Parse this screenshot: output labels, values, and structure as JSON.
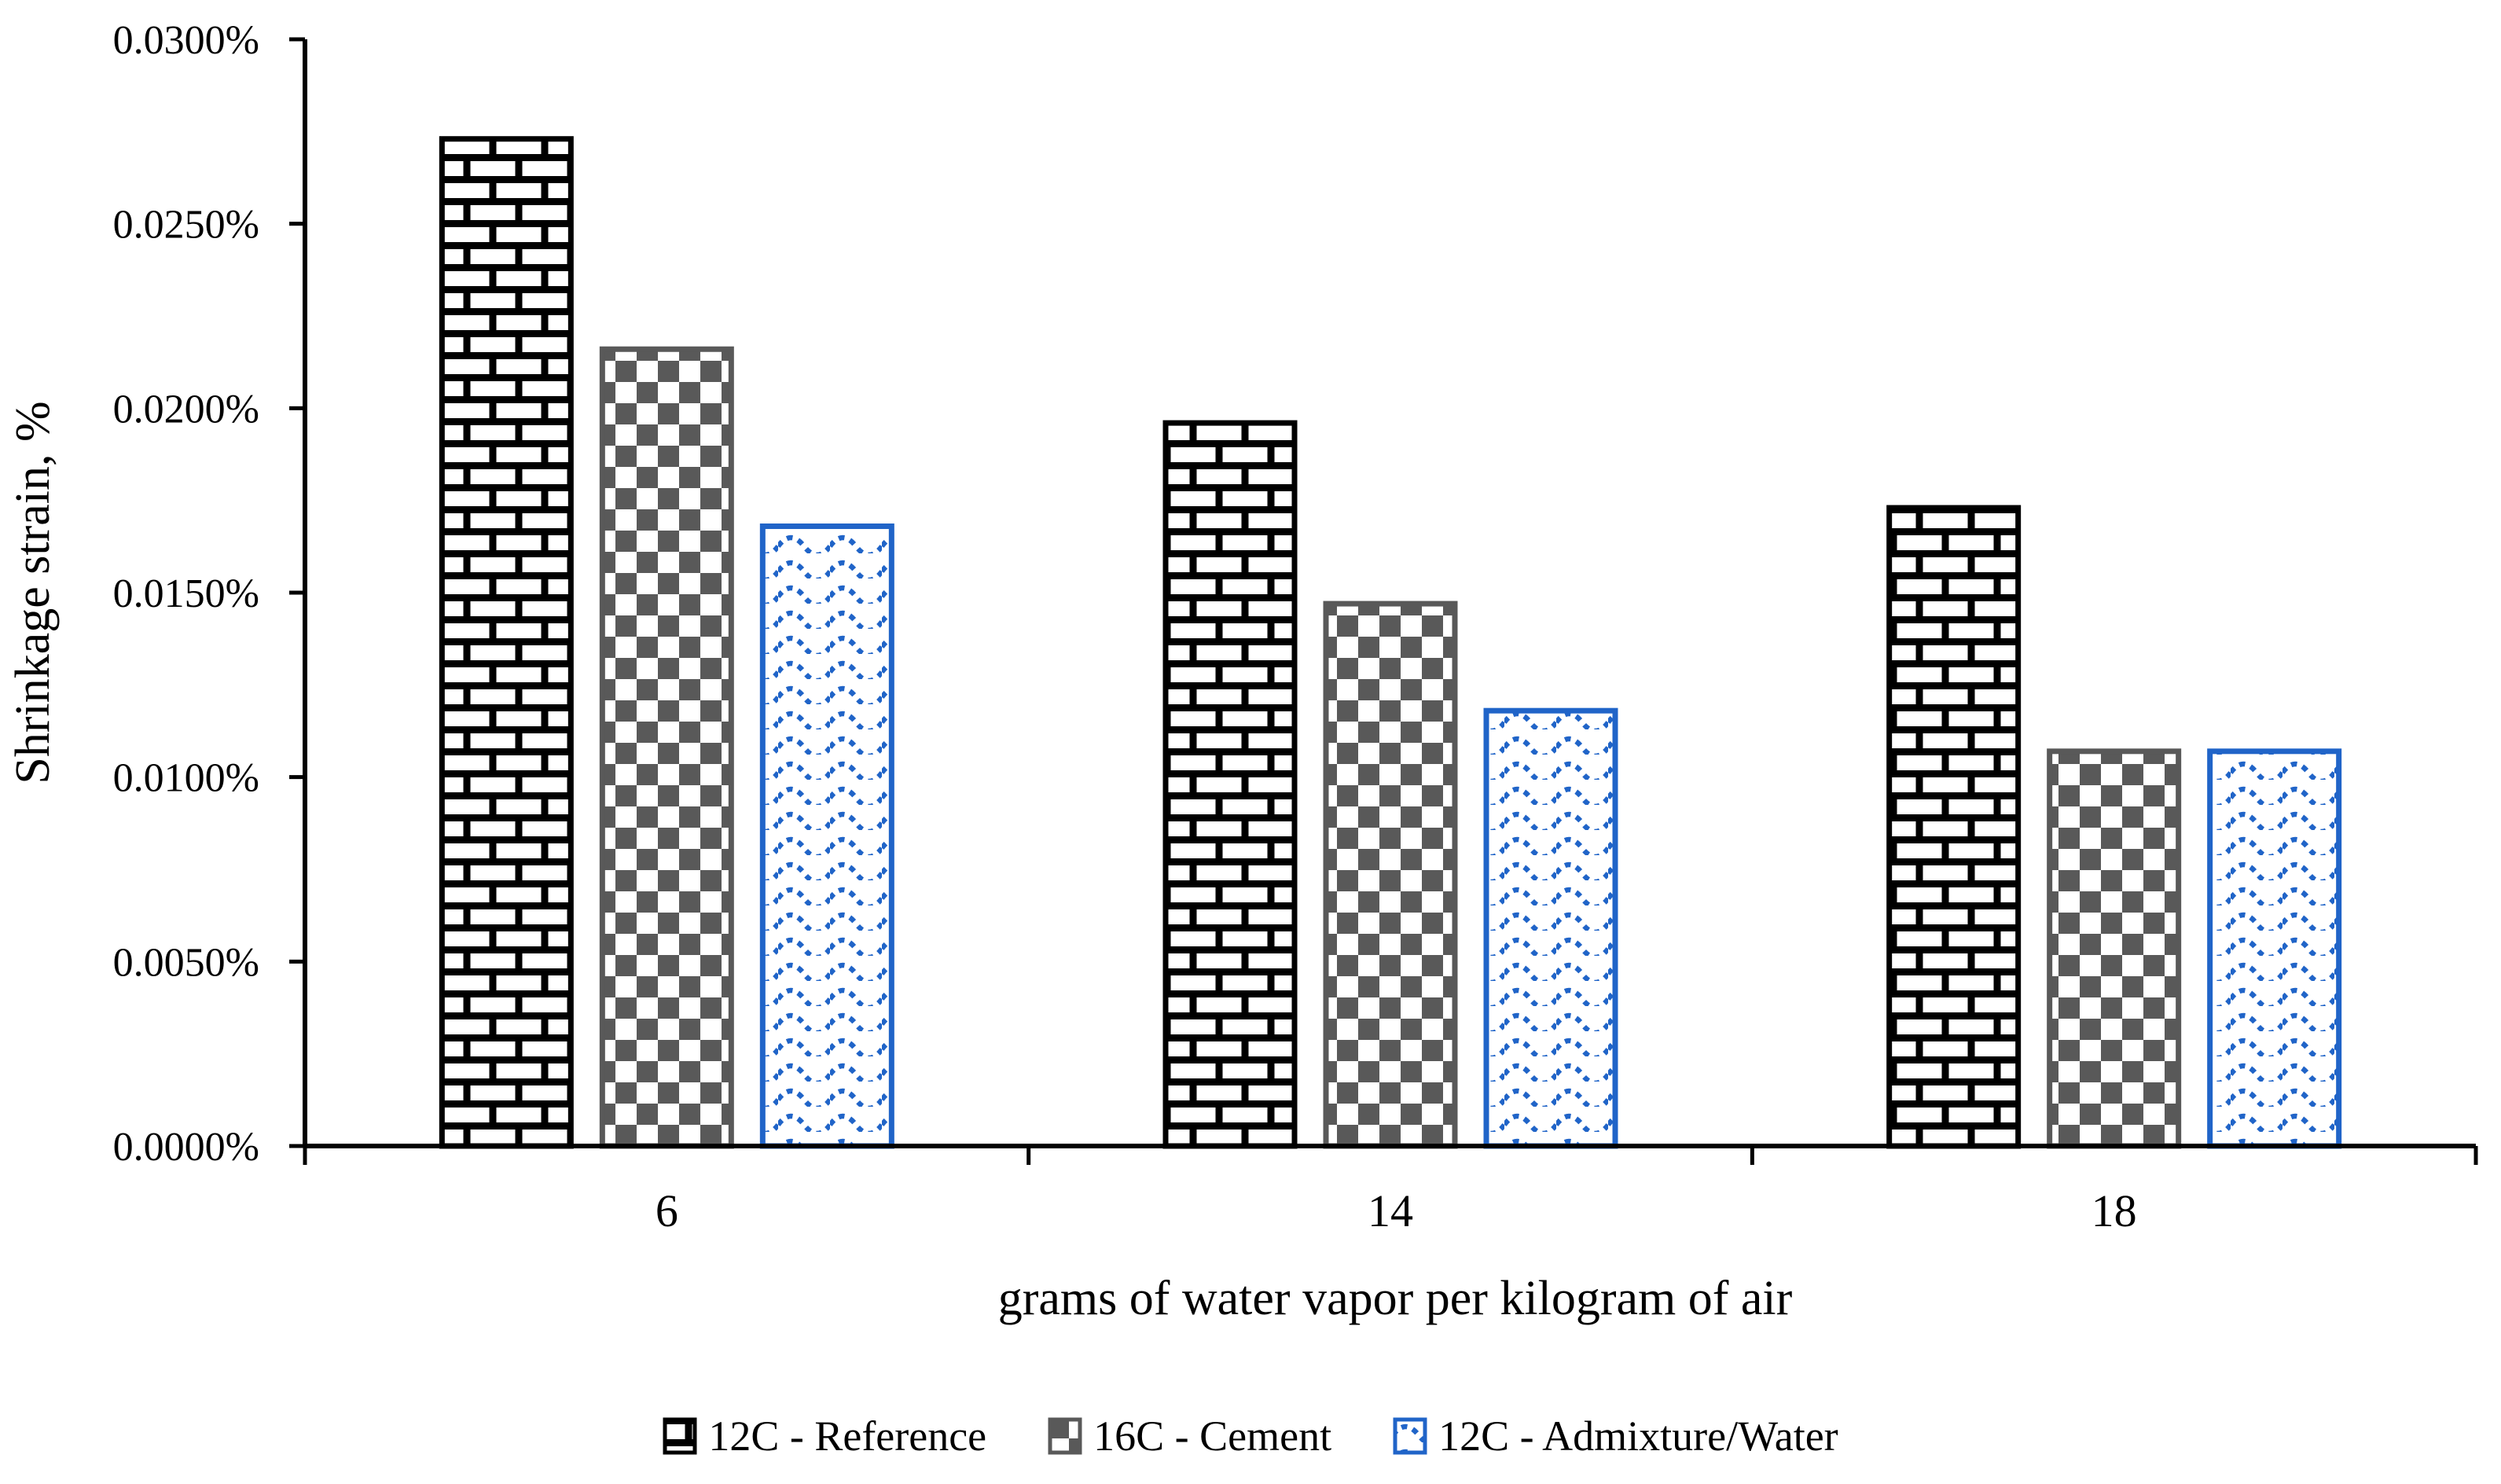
{
  "chart_data": {
    "type": "bar",
    "title": "",
    "categories": [
      "6",
      "14",
      "18"
    ],
    "series": [
      {
        "name": "12C - Reference",
        "fill_style": "brick",
        "color": "#000000",
        "values": [
          0.0273,
          0.0196,
          0.0173
        ]
      },
      {
        "name": "16C - Cement",
        "fill_style": "checker",
        "color": "#595959",
        "values": [
          0.0216,
          0.0147,
          0.0107
        ]
      },
      {
        "name": "12C - Admixture/Water",
        "fill_style": "wave",
        "color": "#2064c8",
        "values": [
          0.0168,
          0.0118,
          0.0107
        ]
      }
    ],
    "xlabel": "grams of water vapor per kilogram of air",
    "ylabel": "Shrinkage strain, %",
    "ylim": [
      0,
      0.03
    ],
    "ytick_step": 0.005,
    "ytick_labels": [
      "0.0000%",
      "0.0050%",
      "0.0100%",
      "0.0150%",
      "0.0200%",
      "0.0250%",
      "0.0300%"
    ],
    "value_unit": "percent of strain",
    "grid": false,
    "legend_position": "bottom",
    "background": "#ffffff"
  }
}
